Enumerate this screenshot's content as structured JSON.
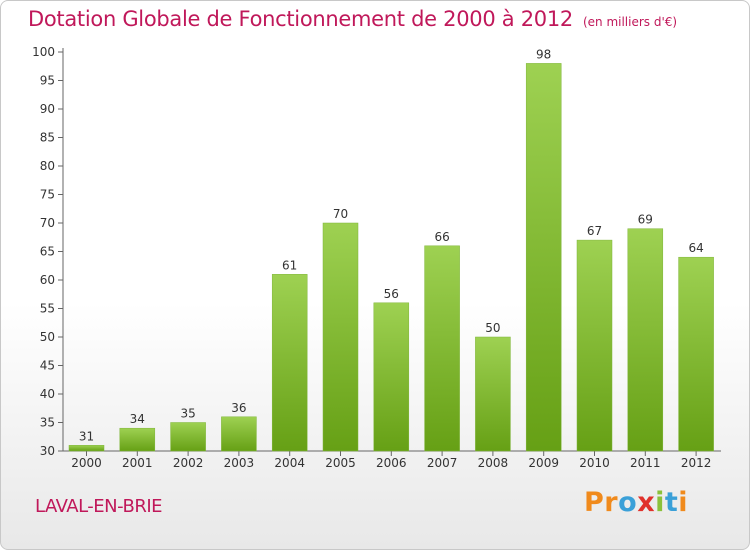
{
  "header": {
    "title": "Dotation Globale de Fonctionnement de 2000 à 2012",
    "subtitle": "(en milliers d'€)"
  },
  "footer": {
    "commune": "LAVAL-EN-BRIE",
    "logo": [
      "P",
      "r",
      "o",
      "x",
      "i",
      "t",
      "i"
    ]
  },
  "colors": {
    "title": "#c0185a",
    "bar_top": "#9ed152",
    "bar_bottom": "#66a015",
    "logo": [
      "#f08a1c",
      "#f08a1c",
      "#3aa0d8",
      "#e0312b",
      "#8bc13b",
      "#3aa0d8",
      "#f08a1c"
    ]
  },
  "chart_data": {
    "type": "bar",
    "categories": [
      "2000",
      "2001",
      "2002",
      "2003",
      "2004",
      "2005",
      "2006",
      "2007",
      "2008",
      "2009",
      "2010",
      "2011",
      "2012"
    ],
    "values": [
      31,
      34,
      35,
      36,
      61,
      70,
      56,
      66,
      50,
      98,
      67,
      69,
      64
    ],
    "ylim": [
      30,
      100
    ],
    "yticks": [
      30,
      35,
      40,
      45,
      50,
      55,
      60,
      65,
      70,
      75,
      80,
      85,
      90,
      95,
      100
    ],
    "grid": false
  }
}
